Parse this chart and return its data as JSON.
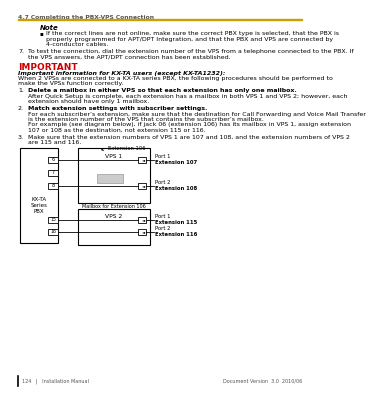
{
  "page_title": "4.7 Completing the PBX-VPS Connection",
  "bg_color": "#ffffff",
  "footer_left": "124   |   Installation Manual",
  "footer_right": "Document Version  3.0  2010/06",
  "note_title": "Note",
  "note_bullet": "If the correct lines are not online, make sure the correct PBX type is selected, that the PBX is properly programmed for APT/DPT Integration, and that the PBX and VPS are connected by 4-conductor cables.",
  "step7_num": "7.",
  "step7_body": "To test the connection, dial the extension number of the VPS from a telephone connected to the PBX. If the VPS answers, the APT/DPT connection has been established.",
  "important_label": "IMPORTANT",
  "important_color": "#cc0000",
  "important_title": "Important information for KX-TA users (except KX-TA1232):",
  "important_body1": "When 2 VPSs are connected to a KX-TA series PBX, the following procedures should be performed to make the VPSs function correctly.",
  "step1_num": "1.",
  "step1_title": "Delete a mailbox in either VPS so that each extension has only one mailbox.",
  "step1_body": "After Quick Setup is complete, each extension has a mailbox in both VPS 1 and VPS 2; however, each extension should have only 1 mailbox.",
  "step2_num": "2.",
  "step2_title": "Match extension settings with subscriber settings.",
  "step2_body1": "For each subscriber’s extension, make sure that the destination for Call Forwarding and Voice Mail Transfer is the extension number of the VPS that contains the subscriber’s mailbox.",
  "step2_body2": "For example (see diagram below), if jack 06 (extension 106) has its mailbox in VPS 1, assign extension 107 or 108 as the destination, not extension 115 or 116.",
  "step3_num": "3.",
  "step3_body": "Make sure that the extension numbers of VPS 1 are 107 and 108, and the extension numbers of VPS 2 are 115 and 116.",
  "diagram": {
    "pbx_label": "KX-TA\nSeries\nPBX",
    "vps1_label": "VPS 1",
    "vps2_label": "VPS 2",
    "ext106_label": "Extension 106",
    "mailbox_label": "Mailbox for Extension 106",
    "jacks_vps1": [
      "6",
      "7",
      "8"
    ],
    "jacks_vps2": [
      "15",
      "16"
    ],
    "port1_vps1": "Port 1\nExtension 107",
    "port2_vps1": "Port 2\nExtension 108",
    "port1_vps2": "Port 1\nExtension 115",
    "port2_vps2": "Port 2\nExtension 116"
  },
  "text_color": "#000000",
  "gray_color": "#555555",
  "fs_body": 4.5,
  "fs_note_title": 5.0,
  "fs_important": 6.5,
  "fs_header": 4.8
}
